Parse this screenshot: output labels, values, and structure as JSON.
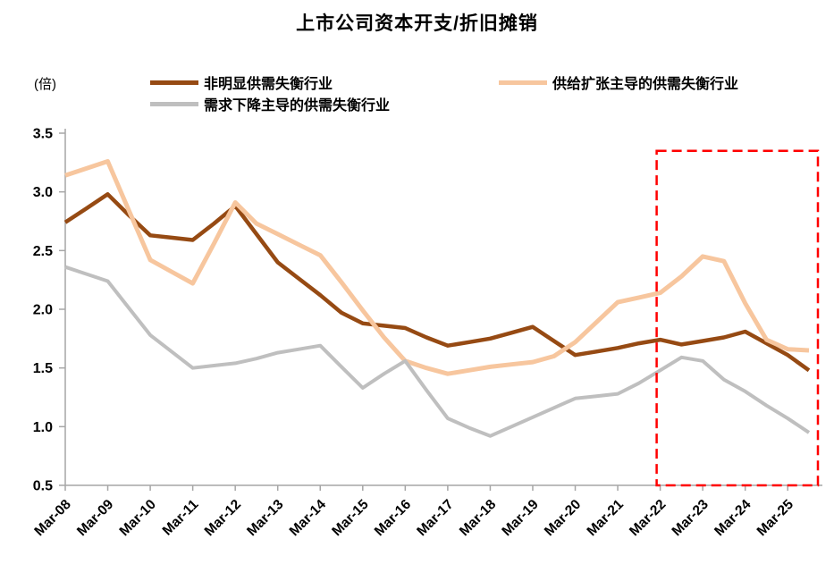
{
  "chart_data": {
    "type": "line",
    "title": "上市公司资本开支/折旧摊销",
    "y_unit_label": "(倍)",
    "xlabel": "",
    "ylabel": "",
    "ylim": [
      0.5,
      3.5
    ],
    "y_ticks": [
      3.5,
      3.0,
      2.5,
      2.0,
      1.5,
      1.0,
      0.5
    ],
    "x_tick_labels": [
      "Mar-08",
      "Mar-09",
      "Mar-10",
      "Mar-11",
      "Mar-12",
      "Mar-13",
      "Mar-14",
      "Mar-15",
      "Mar-16",
      "Mar-17",
      "Mar-18",
      "Mar-19",
      "Mar-20",
      "Mar-21",
      "Mar-22",
      "Mar-23",
      "Mar-24",
      "Mar-25"
    ],
    "sampling": "semiannual — 2 data points per labeled year (Mar & Sep), Mar-08 through Sep-25",
    "grid": false,
    "legend_position": "top",
    "series": [
      {
        "name": "非明显供需失衡行业",
        "color": "#964A13",
        "line_width": 4.5,
        "values": [
          2.74,
          2.86,
          2.98,
          2.8,
          2.63,
          2.61,
          2.59,
          2.73,
          2.88,
          2.64,
          2.4,
          2.26,
          2.12,
          1.97,
          1.88,
          1.86,
          1.84,
          1.76,
          1.69,
          1.72,
          1.75,
          1.8,
          1.85,
          1.73,
          1.61,
          1.64,
          1.67,
          1.71,
          1.74,
          1.7,
          1.73,
          1.76,
          1.81,
          1.71,
          1.61,
          1.48
        ]
      },
      {
        "name": "供给扩张主导的供需失衡行业",
        "color": "#F7C69E",
        "line_width": 5,
        "values": [
          3.14,
          3.2,
          3.26,
          2.84,
          2.42,
          2.32,
          2.22,
          2.56,
          2.91,
          2.73,
          2.64,
          2.55,
          2.46,
          2.23,
          1.99,
          1.76,
          1.56,
          1.5,
          1.45,
          1.48,
          1.51,
          1.53,
          1.55,
          1.6,
          1.72,
          1.89,
          2.06,
          2.1,
          2.14,
          2.28,
          2.45,
          2.41,
          2.05,
          1.74,
          1.66,
          1.65
        ]
      },
      {
        "name": "需求下降主导的供需失衡行业",
        "color": "#BFBFBF",
        "line_width": 4,
        "values": [
          2.36,
          2.3,
          2.24,
          2.01,
          1.78,
          1.64,
          1.5,
          1.52,
          1.54,
          1.58,
          1.63,
          1.66,
          1.69,
          1.51,
          1.33,
          1.45,
          1.56,
          1.31,
          1.07,
          0.99,
          0.92,
          1.0,
          1.08,
          1.16,
          1.24,
          1.26,
          1.28,
          1.37,
          1.48,
          1.59,
          1.56,
          1.4,
          1.3,
          1.18,
          1.07,
          0.95
        ]
      }
    ],
    "highlight_box": {
      "label_range": "Mar-22 to Mar-25 (right edge of plot)",
      "start_label_index": 14,
      "color": "#FF0000",
      "style": "dashed",
      "top_value": 3.35
    },
    "axis_color": "#A6A6A6",
    "text_color": "#000000"
  }
}
